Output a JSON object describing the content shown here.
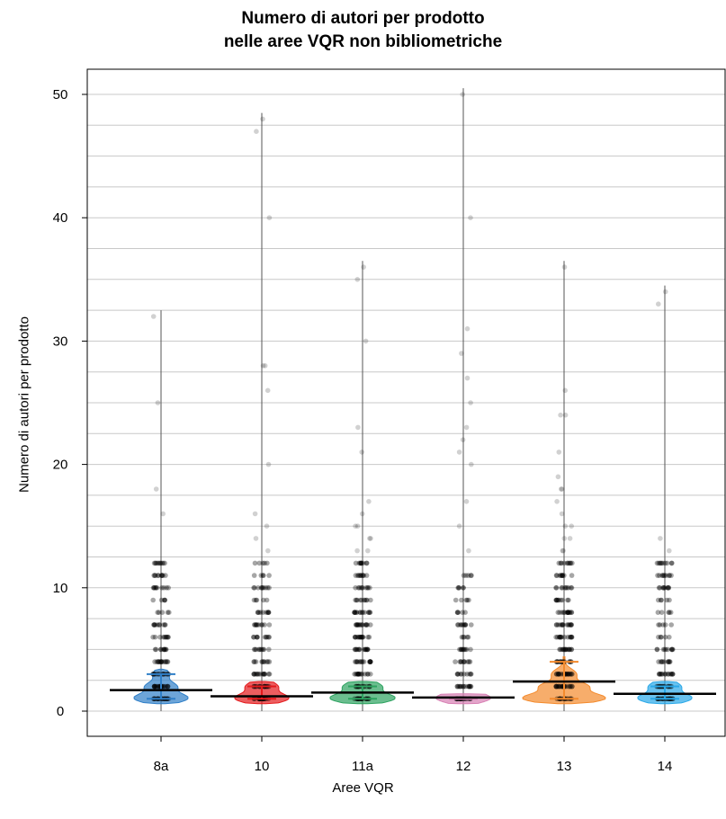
{
  "chart_data": {
    "type": "pirate",
    "title": [
      "Numero di autori per prodotto",
      "nelle aree VQR non bibliometriche"
    ],
    "xlabel": "Aree VQR",
    "ylabel": "Numero di autori per prodotto",
    "ylim": [
      -2,
      52
    ],
    "yticks": [
      0,
      10,
      20,
      30,
      40,
      50
    ],
    "grid": true,
    "categories": [
      "8a",
      "10",
      "11a",
      "12",
      "13",
      "14"
    ],
    "colors": [
      "#2f7fc8",
      "#e41a1c",
      "#2ca25f",
      "#d77fb3",
      "#f48a2c",
      "#29a8e8"
    ],
    "series": [
      {
        "category": "8a",
        "mean": 1.7,
        "ci": [
          1.0,
          3.0
        ],
        "max": 32,
        "points": [
          1,
          1,
          1,
          1,
          2,
          2,
          2,
          2,
          3,
          3,
          3,
          4,
          4,
          4,
          5,
          5,
          6,
          6,
          7,
          7,
          8,
          9,
          10,
          10,
          11,
          11,
          12,
          12,
          16,
          18,
          25,
          32
        ]
      },
      {
        "category": "10",
        "mean": 1.2,
        "ci": [
          1.0,
          2.0
        ],
        "max": 48,
        "points": [
          1,
          1,
          1,
          1,
          2,
          2,
          2,
          3,
          3,
          3,
          4,
          4,
          5,
          5,
          6,
          6,
          7,
          7,
          8,
          8,
          9,
          10,
          10,
          11,
          12,
          13,
          14,
          15,
          16,
          20,
          26,
          28,
          28,
          40,
          47,
          48
        ]
      },
      {
        "category": "11a",
        "mean": 1.5,
        "ci": [
          1.0,
          2.0
        ],
        "max": 36,
        "points": [
          1,
          1,
          1,
          1,
          2,
          2,
          2,
          3,
          3,
          3,
          4,
          4,
          4,
          5,
          5,
          5,
          6,
          6,
          6,
          7,
          7,
          7,
          8,
          8,
          8,
          9,
          9,
          10,
          10,
          11,
          11,
          12,
          12,
          13,
          13,
          14,
          14,
          15,
          15,
          16,
          17,
          21,
          23,
          30,
          35,
          36
        ]
      },
      {
        "category": "12",
        "mean": 1.1,
        "ci": [
          1.0,
          1.0
        ],
        "max": 50,
        "points": [
          1,
          1,
          1,
          1,
          2,
          2,
          2,
          3,
          3,
          4,
          4,
          5,
          5,
          6,
          7,
          7,
          8,
          9,
          10,
          11,
          13,
          15,
          17,
          20,
          21,
          22,
          23,
          25,
          27,
          29,
          31,
          40,
          50
        ]
      },
      {
        "category": "13",
        "mean": 2.4,
        "ci": [
          1.0,
          4.0
        ],
        "max": 36,
        "points": [
          1,
          1,
          1,
          2,
          2,
          2,
          2,
          3,
          3,
          3,
          3,
          4,
          4,
          4,
          5,
          5,
          5,
          6,
          6,
          6,
          7,
          7,
          7,
          8,
          8,
          8,
          9,
          9,
          10,
          10,
          11,
          11,
          12,
          12,
          13,
          13,
          14,
          14,
          15,
          15,
          16,
          17,
          18,
          18,
          19,
          21,
          24,
          24,
          26,
          36
        ]
      },
      {
        "category": "14",
        "mean": 1.4,
        "ci": [
          1.0,
          2.0
        ],
        "max": 34,
        "points": [
          1,
          1,
          1,
          1,
          2,
          2,
          2,
          3,
          3,
          3,
          4,
          4,
          5,
          5,
          6,
          7,
          8,
          9,
          10,
          10,
          11,
          11,
          12,
          12,
          13,
          14,
          33,
          34
        ]
      }
    ]
  }
}
